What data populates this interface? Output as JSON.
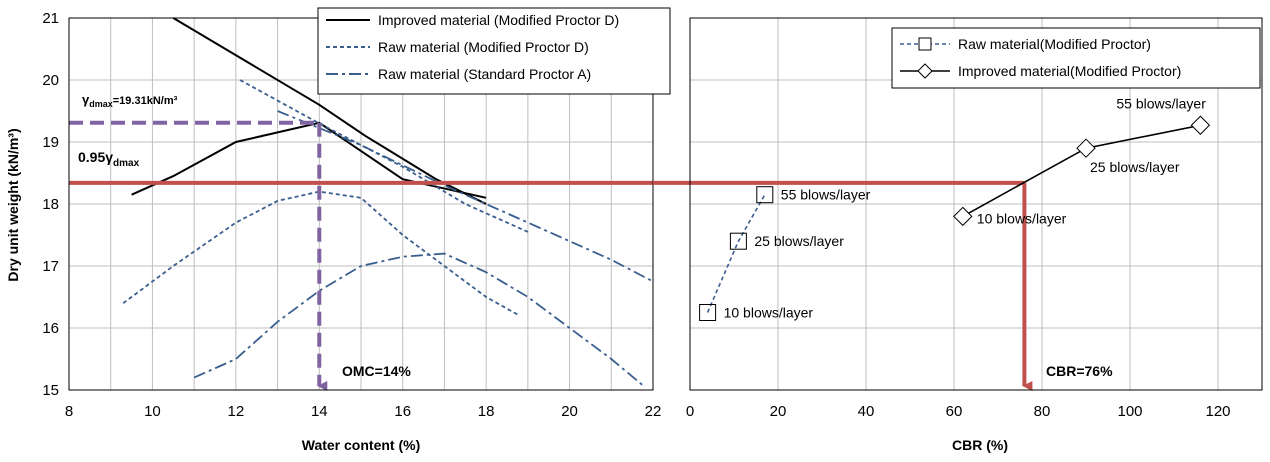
{
  "chart_data": [
    {
      "type": "line",
      "xlabel": "Water content (%)",
      "ylabel": "Dry unit weight (kN/m³)",
      "xlim": [
        8,
        22
      ],
      "ylim": [
        15,
        21
      ],
      "xticks": [
        "8",
        "10",
        "12",
        "14",
        "16",
        "18",
        "20",
        "22"
      ],
      "yticks": [
        "15",
        "16",
        "17",
        "18",
        "19",
        "20",
        "21"
      ],
      "grid": true,
      "legend_position": "top-right",
      "series": [
        {
          "name": "Improved material (Modified Proctor D)",
          "style": "solid",
          "color": "#000000",
          "x": [
            9.5,
            10.5,
            12,
            14,
            16,
            18
          ],
          "y": [
            18.15,
            18.45,
            19.0,
            19.31,
            18.4,
            18.1
          ]
        },
        {
          "name": "Raw material (Modified Proctor D)",
          "style": "dashed",
          "color": "#3a5f8f",
          "x": [
            9.3,
            10.5,
            12,
            13,
            14,
            15,
            16,
            17,
            18,
            18.8
          ],
          "y": [
            16.4,
            17.0,
            17.7,
            18.05,
            18.2,
            18.1,
            17.5,
            17.0,
            16.5,
            16.2
          ]
        },
        {
          "name": "Raw material (Standard Proctor A)",
          "style": "dashdot",
          "color": "#3a5f8f",
          "x": [
            11,
            12,
            13,
            14,
            15,
            16,
            17,
            18,
            19,
            20,
            21,
            21.8
          ],
          "y": [
            15.2,
            15.5,
            16.1,
            16.6,
            17.0,
            17.15,
            17.2,
            16.9,
            16.5,
            16.0,
            15.5,
            15.05
          ]
        },
        {
          "name": "",
          "style": "solid",
          "color": "#000000",
          "x": [
            10.5,
            14,
            15.1,
            16.8,
            18
          ],
          "y": [
            21.0,
            19.6,
            19.1,
            18.4,
            18.0
          ]
        },
        {
          "name": "",
          "style": "dashed",
          "color": "#3a5f8f",
          "x": [
            12.1,
            14,
            16,
            17.5,
            19
          ],
          "y": [
            20.0,
            19.3,
            18.6,
            18.0,
            17.55
          ]
        },
        {
          "name": "",
          "style": "dashdot",
          "color": "#3a5f8f",
          "x": [
            13,
            15,
            17,
            19,
            21,
            22
          ],
          "y": [
            19.5,
            18.95,
            18.3,
            17.7,
            17.1,
            16.75
          ]
        }
      ],
      "reference_lines": {
        "max_dry_unit_weight": {
          "y": 19.31,
          "x_end": 14,
          "color": "#8064a2"
        },
        "omc": {
          "x": 14,
          "y_top": 19.31,
          "y_bottom": 15,
          "color": "#8064a2"
        },
        "criterion_95": {
          "y": 18.34,
          "color": "#c0504d"
        }
      },
      "annotations": {
        "gamma_max_main": "γ",
        "gamma_max_sub": "dmax",
        "gamma_max_value": "=19.31kN/m³",
        "criterion_prefix": "0.95γ",
        "criterion_sub": "dmax",
        "omc_label": "OMC=14%"
      }
    },
    {
      "type": "line",
      "xlabel": "CBR (%)",
      "ylabel": "",
      "xlim": [
        0,
        130
      ],
      "ylim": [
        15,
        21
      ],
      "xticks": [
        "0",
        "20",
        "40",
        "60",
        "80",
        "100",
        "120"
      ],
      "grid": true,
      "legend_position": "top-right",
      "series": [
        {
          "name": "Raw material(Modified Proctor)",
          "style": "dashed",
          "marker": "square",
          "color": "#3a5f8f",
          "x": [
            4,
            11,
            17
          ],
          "y": [
            16.25,
            17.4,
            18.15
          ],
          "point_labels": [
            "10 blows/layer",
            "25 blows/layer",
            "55 blows/layer"
          ]
        },
        {
          "name": "Improved material(Modified Proctor)",
          "style": "solid",
          "marker": "diamond",
          "color": "#000000",
          "x": [
            62,
            90,
            116
          ],
          "y": [
            17.8,
            18.9,
            19.27
          ],
          "point_labels": [
            "10 blows/layer",
            "25 blows/layer",
            "55 blows/layer"
          ]
        }
      ],
      "reference_lines": {
        "criterion_95": {
          "y": 18.34,
          "x_end": 76,
          "color": "#c0504d"
        },
        "cbr_value": {
          "x": 76,
          "y_top": 18.34,
          "y_bottom": 15,
          "color": "#c0504d"
        }
      },
      "annotations": {
        "cbr_label": "CBR=76%"
      }
    }
  ]
}
